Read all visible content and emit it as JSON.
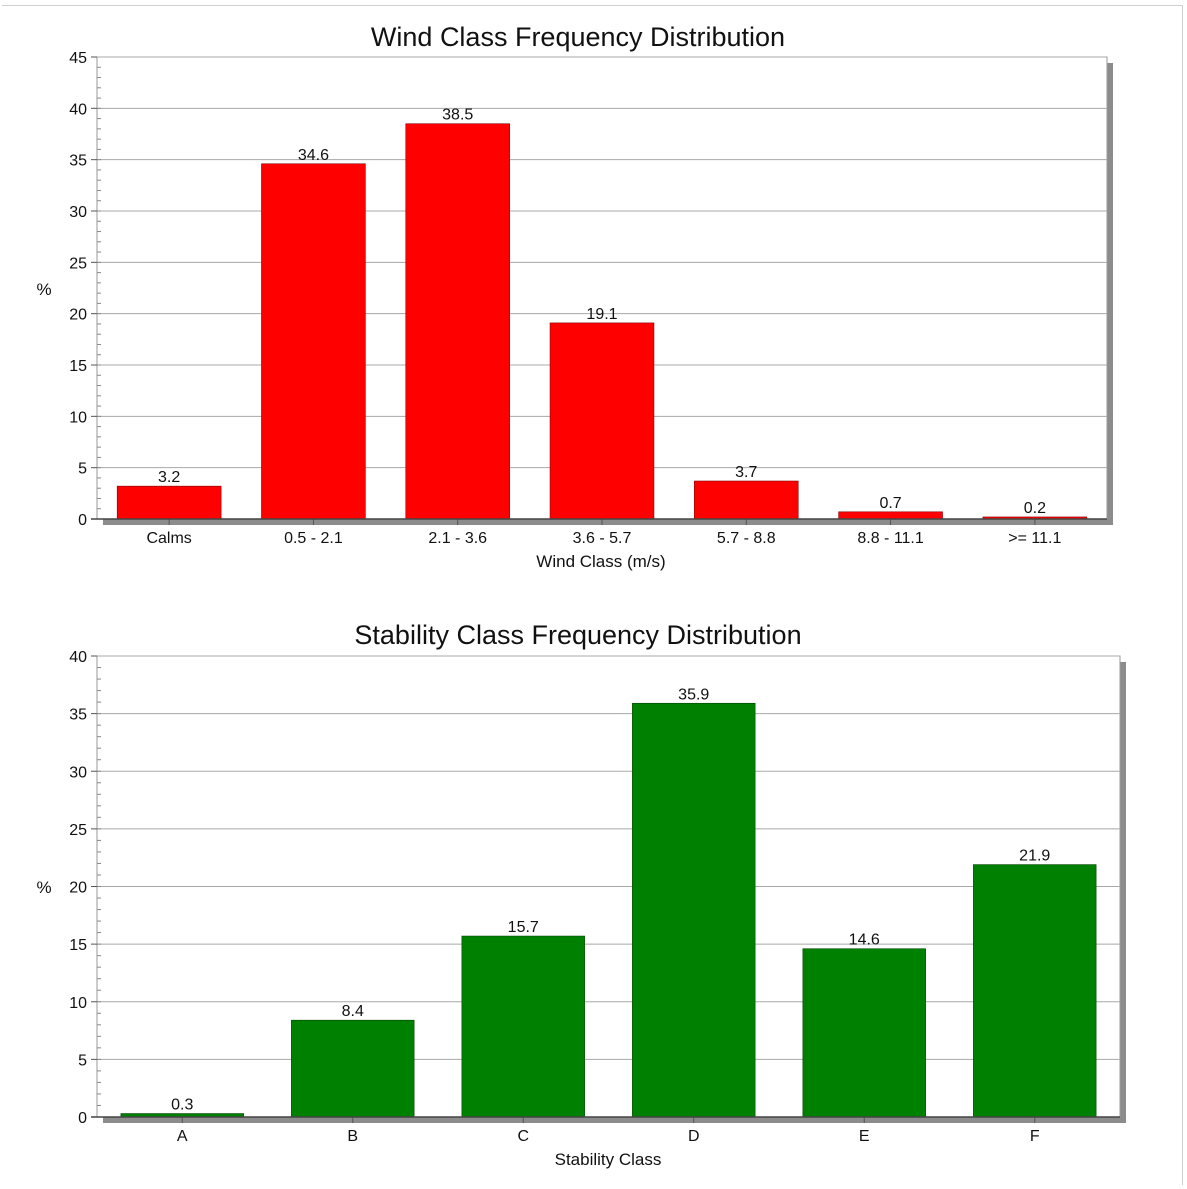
{
  "chart_data": [
    {
      "type": "bar",
      "title": "Wind Class Frequency Distribution",
      "xlabel": "Wind Class (m/s)",
      "ylabel": "%",
      "ylim": [
        0,
        45
      ],
      "yticks": [
        "0",
        "5",
        "10",
        "15",
        "20",
        "25",
        "30",
        "35",
        "40",
        "45"
      ],
      "categories": [
        "Calms",
        "0.5 -  2.1",
        "2.1 -  3.6",
        "3.6 -  5.7",
        "5.7 -  8.8",
        "8.8 - 11.1",
        ">= 11.1"
      ],
      "values": [
        3.2,
        34.6,
        38.5,
        19.1,
        3.7,
        0.7,
        0.2
      ],
      "value_labels": [
        "3.2",
        "34.6",
        "38.5",
        "19.1",
        "3.7",
        "0.7",
        "0.2"
      ],
      "bar_color": "#ff0000",
      "grid": true,
      "legend": "none"
    },
    {
      "type": "bar",
      "title": "Stability Class Frequency Distribution",
      "xlabel": "Stability Class",
      "ylabel": "%",
      "ylim": [
        0,
        40
      ],
      "yticks": [
        "0",
        "5",
        "10",
        "15",
        "20",
        "25",
        "30",
        "35",
        "40"
      ],
      "categories": [
        "A",
        "B",
        "C",
        "D",
        "E",
        "F"
      ],
      "values": [
        0.3,
        8.4,
        15.7,
        35.9,
        14.6,
        21.9
      ],
      "value_labels": [
        "0.3",
        "8.4",
        "15.7",
        "35.9",
        "14.6",
        "21.9"
      ],
      "bar_color": "#008000",
      "grid": true,
      "legend": "none"
    }
  ]
}
